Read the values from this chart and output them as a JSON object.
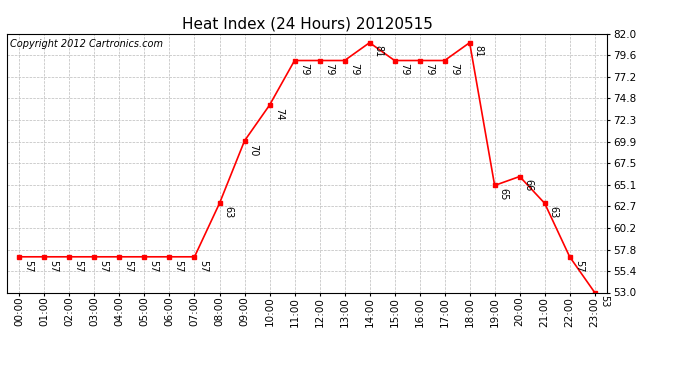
{
  "title": "Heat Index (24 Hours) 20120515",
  "copyright": "Copyright 2012 Cartronics.com",
  "hours": [
    0,
    1,
    2,
    3,
    4,
    5,
    6,
    7,
    8,
    9,
    10,
    11,
    12,
    13,
    14,
    15,
    16,
    17,
    18,
    19,
    20,
    21,
    22,
    23
  ],
  "values": [
    57,
    57,
    57,
    57,
    57,
    57,
    57,
    57,
    63,
    70,
    74,
    79,
    79,
    79,
    81,
    79,
    79,
    79,
    81,
    65,
    66,
    63,
    57,
    53
  ],
  "ylim": [
    53.0,
    82.0
  ],
  "yticks": [
    53.0,
    55.4,
    57.8,
    60.2,
    62.7,
    65.1,
    67.5,
    69.9,
    72.3,
    74.8,
    77.2,
    79.6,
    82.0
  ],
  "line_color": "red",
  "marker": "s",
  "marker_size": 3,
  "background_color": "white",
  "grid_color": "#bbbbbb",
  "title_fontsize": 11,
  "tick_fontsize": 7.5,
  "copyright_fontsize": 7,
  "annot_fontsize": 7
}
